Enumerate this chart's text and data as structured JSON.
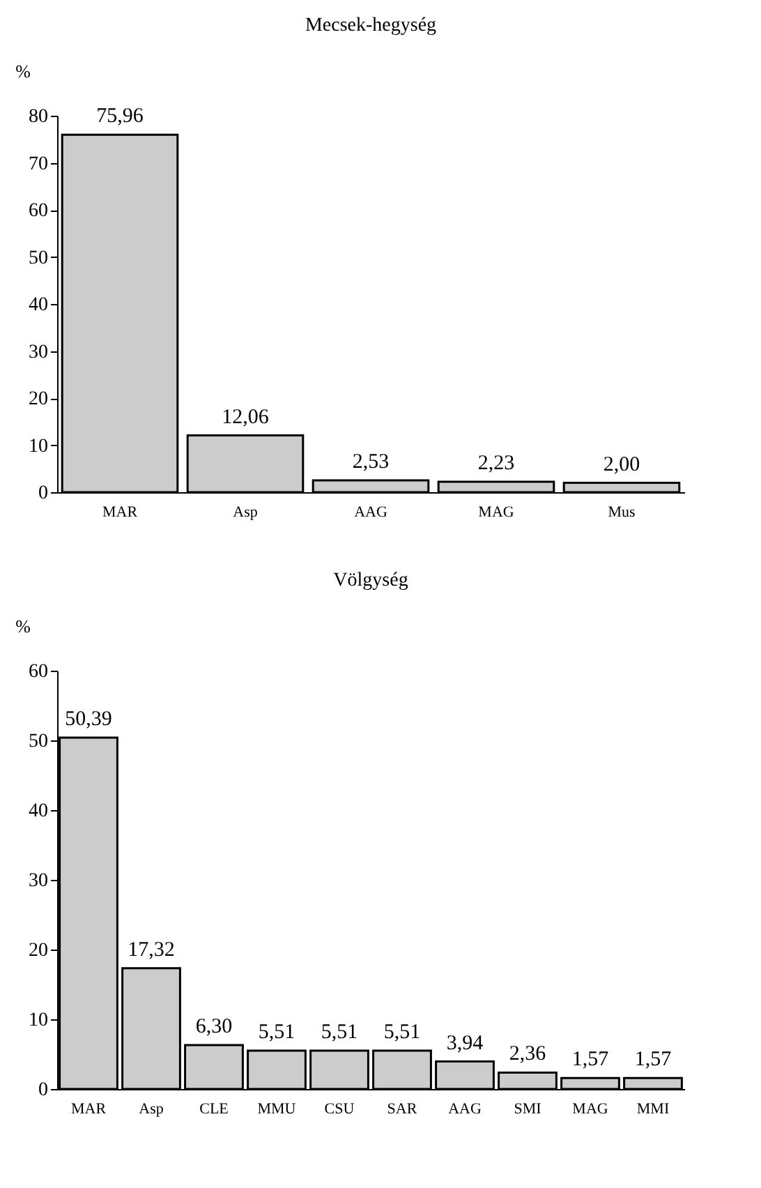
{
  "chart_data": [
    {
      "type": "bar",
      "title": "Mecsek-hegység",
      "ylabel": "%",
      "categories": [
        "MAR",
        "Asp",
        "AAG",
        "MAG",
        "Mus"
      ],
      "values": [
        75.96,
        12.06,
        2.53,
        2.23,
        2.0
      ],
      "value_labels": [
        "75,96",
        "12,06",
        "2,53",
        "2,23",
        "2,00"
      ],
      "color": "#cccccc",
      "ylim": [
        0,
        80
      ],
      "yticks": [
        0,
        10,
        20,
        30,
        40,
        50,
        60,
        70,
        80
      ],
      "grid": false
    },
    {
      "type": "bar",
      "title": "Völgység",
      "ylabel": "%",
      "categories": [
        "MAR",
        "Asp",
        "CLE",
        "MMU",
        "CSU",
        "SAR",
        "AAG",
        "SMI",
        "MAG",
        "MMI"
      ],
      "values": [
        50.39,
        17.32,
        6.3,
        5.51,
        5.51,
        5.51,
        3.94,
        2.36,
        1.57,
        1.57
      ],
      "value_labels": [
        "50,39",
        "17,32",
        "6,30",
        "5,51",
        "5,51",
        "5,51",
        "3,94",
        "2,36",
        "1,57",
        "1,57"
      ],
      "color": "#cccccc",
      "ylim": [
        0,
        60
      ],
      "yticks": [
        0,
        10,
        20,
        30,
        40,
        50,
        60
      ],
      "grid": false
    }
  ]
}
